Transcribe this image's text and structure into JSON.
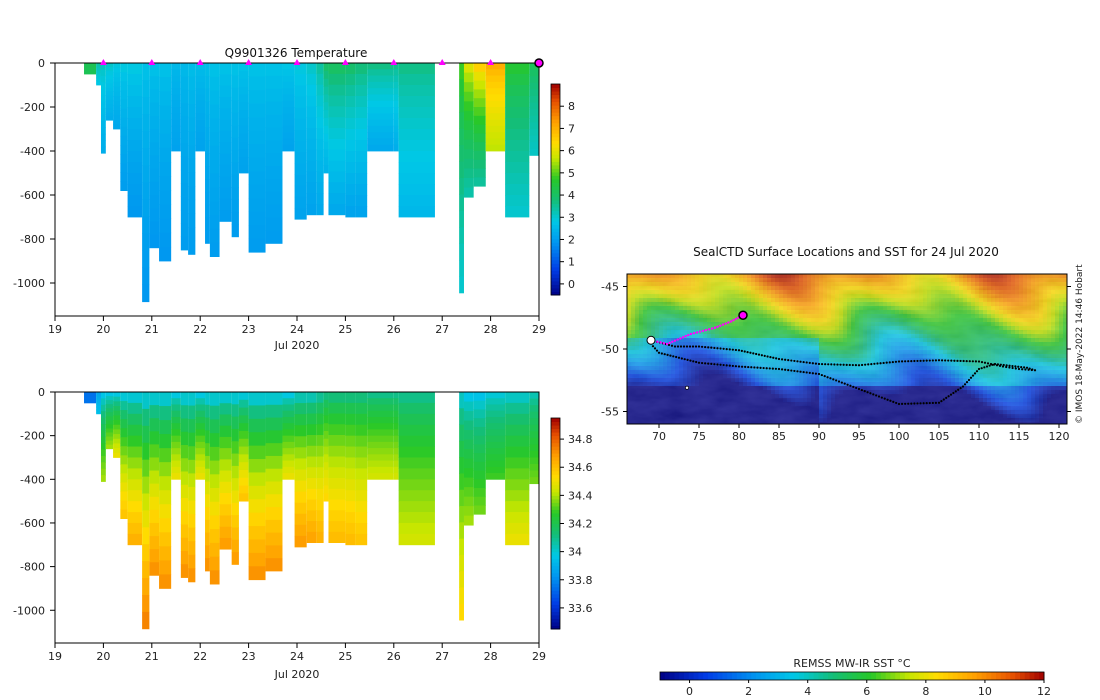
{
  "chart_data": [
    {
      "type": "heatmap",
      "id": "temperature",
      "title": "Q9901326  Temperature",
      "xlabel": "Jul 2020",
      "ylabel": "",
      "xlim": [
        19,
        29
      ],
      "ylim": [
        -1150,
        0
      ],
      "x_ticks": [
        "19",
        "20",
        "21",
        "22",
        "23",
        "24",
        "25",
        "26",
        "27",
        "28",
        "29"
      ],
      "y_ticks": [
        "0",
        "-200",
        "-400",
        "-600",
        "-800",
        "-1000"
      ],
      "colorbar": {
        "min": -0.5,
        "max": 9,
        "ticks": [
          "0",
          "1",
          "2",
          "3",
          "4",
          "5",
          "6",
          "7",
          "8"
        ]
      },
      "surface_markers_day": [
        20,
        21,
        22,
        23,
        24,
        25,
        26,
        27,
        28
      ],
      "last_marker_day": 29,
      "profiles": [
        {
          "x0": 19.6,
          "x1": 19.85,
          "depth": -50,
          "top": 4.2,
          "bottom": 4.2
        },
        {
          "x0": 19.85,
          "x1": 19.95,
          "depth": -100,
          "top": 3.5,
          "bottom": 2.8
        },
        {
          "x0": 19.95,
          "x1": 20.05,
          "depth": -410,
          "top": 3.3,
          "bottom": 2.3
        },
        {
          "x0": 20.05,
          "x1": 20.2,
          "depth": -260,
          "top": 3.2,
          "bottom": 2.3
        },
        {
          "x0": 20.2,
          "x1": 20.35,
          "depth": -300,
          "top": 3.0,
          "bottom": 2.2
        },
        {
          "x0": 20.35,
          "x1": 20.5,
          "depth": -580,
          "top": 3.0,
          "bottom": 2.0
        },
        {
          "x0": 20.5,
          "x1": 20.8,
          "depth": -700,
          "top": 3.0,
          "bottom": 1.9
        },
        {
          "x0": 20.8,
          "x1": 20.95,
          "depth": -1085,
          "top": 2.8,
          "bottom": 1.9
        },
        {
          "x0": 20.95,
          "x1": 21.15,
          "depth": -840,
          "top": 2.8,
          "bottom": 1.9
        },
        {
          "x0": 21.15,
          "x1": 21.4,
          "depth": -900,
          "top": 2.8,
          "bottom": 1.9
        },
        {
          "x0": 21.4,
          "x1": 21.6,
          "depth": -400,
          "top": 2.6,
          "bottom": 2.1
        },
        {
          "x0": 21.6,
          "x1": 21.75,
          "depth": -850,
          "top": 2.6,
          "bottom": 2.0
        },
        {
          "x0": 21.75,
          "x1": 21.9,
          "depth": -870,
          "top": 2.7,
          "bottom": 2.0
        },
        {
          "x0": 21.9,
          "x1": 22.1,
          "depth": -400,
          "top": 2.7,
          "bottom": 2.1
        },
        {
          "x0": 22.1,
          "x1": 22.2,
          "depth": -820,
          "top": 2.7,
          "bottom": 2.0
        },
        {
          "x0": 22.2,
          "x1": 22.4,
          "depth": -880,
          "top": 2.8,
          "bottom": 2.0
        },
        {
          "x0": 22.4,
          "x1": 22.65,
          "depth": -720,
          "top": 2.8,
          "bottom": 2.0
        },
        {
          "x0": 22.65,
          "x1": 22.8,
          "depth": -790,
          "top": 2.8,
          "bottom": 2.0
        },
        {
          "x0": 22.8,
          "x1": 23.0,
          "depth": -500,
          "top": 2.8,
          "bottom": 2.1
        },
        {
          "x0": 23.0,
          "x1": 23.35,
          "depth": -860,
          "top": 2.8,
          "bottom": 2.0
        },
        {
          "x0": 23.35,
          "x1": 23.7,
          "depth": -820,
          "top": 2.8,
          "bottom": 2.0
        },
        {
          "x0": 23.7,
          "x1": 23.95,
          "depth": -400,
          "top": 2.9,
          "bottom": 2.1
        },
        {
          "x0": 23.95,
          "x1": 24.2,
          "depth": -710,
          "top": 3.0,
          "bottom": 2.1
        },
        {
          "x0": 24.2,
          "x1": 24.4,
          "depth": -690,
          "top": 3.2,
          "bottom": 2.1
        },
        {
          "x0": 24.4,
          "x1": 24.55,
          "depth": -690,
          "top": 3.6,
          "bottom": 2.2
        },
        {
          "x0": 24.55,
          "x1": 24.65,
          "depth": -500,
          "top": 4.2,
          "bottom": 2.4
        },
        {
          "x0": 24.65,
          "x1": 25.0,
          "depth": -690,
          "top": 4.3,
          "bottom": 2.2
        },
        {
          "x0": 25.0,
          "x1": 25.2,
          "depth": -700,
          "top": 4.2,
          "bottom": 2.1
        },
        {
          "x0": 25.2,
          "x1": 25.45,
          "depth": -700,
          "top": 4.0,
          "bottom": 2.1
        },
        {
          "x0": 25.45,
          "x1": 26.0,
          "depth": -400,
          "top": 3.9,
          "bottom": 2.2
        },
        {
          "x0": 26.0,
          "x1": 26.1,
          "depth": -400,
          "top": 3.8,
          "bottom": 2.3
        },
        {
          "x0": 26.1,
          "x1": 26.85,
          "depth": -700,
          "top": 3.8,
          "bottom": 2.5
        },
        {
          "x0": 27.35,
          "x1": 27.45,
          "depth": -1045,
          "top": 5.1,
          "bottom": 3.0
        },
        {
          "x0": 27.45,
          "x1": 27.65,
          "depth": -610,
          "top": 6.3,
          "bottom": 3.3
        },
        {
          "x0": 27.65,
          "x1": 27.9,
          "depth": -560,
          "top": 7.0,
          "bottom": 3.4
        },
        {
          "x0": 27.9,
          "x1": 28.3,
          "depth": -400,
          "top": 7.3,
          "bottom": 5.6
        },
        {
          "x0": 28.3,
          "x1": 28.8,
          "depth": -700,
          "top": 4.8,
          "bottom": 3.0
        },
        {
          "x0": 28.8,
          "x1": 29.0,
          "depth": -420,
          "top": 4.3,
          "bottom": 3.1
        }
      ]
    },
    {
      "type": "heatmap",
      "id": "salinity",
      "title": "",
      "xlabel": "Jul 2020",
      "ylabel": "",
      "xlim": [
        19,
        29
      ],
      "ylim": [
        -1150,
        0
      ],
      "x_ticks": [
        "19",
        "20",
        "21",
        "22",
        "23",
        "24",
        "25",
        "26",
        "27",
        "28",
        "29"
      ],
      "y_ticks": [
        "0",
        "-200",
        "-400",
        "-600",
        "-800",
        "-1000"
      ],
      "colorbar": {
        "min": 33.45,
        "max": 34.95,
        "ticks": [
          "33.6",
          "33.8",
          "34",
          "34.2",
          "34.4",
          "34.6",
          "34.8"
        ]
      },
      "profiles": [
        {
          "x0": 19.6,
          "x1": 19.85,
          "depth": -50,
          "top": 33.75,
          "bottom": 33.75
        },
        {
          "x0": 19.85,
          "x1": 19.95,
          "depth": -100,
          "top": 33.85,
          "bottom": 33.95
        },
        {
          "x0": 19.95,
          "x1": 20.05,
          "depth": -410,
          "top": 33.9,
          "bottom": 34.4
        },
        {
          "x0": 20.05,
          "x1": 20.2,
          "depth": -260,
          "top": 33.9,
          "bottom": 34.4
        },
        {
          "x0": 20.2,
          "x1": 20.35,
          "depth": -300,
          "top": 33.9,
          "bottom": 34.5
        },
        {
          "x0": 20.35,
          "x1": 20.5,
          "depth": -580,
          "top": 33.9,
          "bottom": 34.6
        },
        {
          "x0": 20.5,
          "x1": 20.8,
          "depth": -700,
          "top": 33.9,
          "bottom": 34.65
        },
        {
          "x0": 20.8,
          "x1": 20.95,
          "depth": -1085,
          "top": 33.9,
          "bottom": 34.75
        },
        {
          "x0": 20.95,
          "x1": 21.15,
          "depth": -840,
          "top": 33.9,
          "bottom": 34.72
        },
        {
          "x0": 21.15,
          "x1": 21.4,
          "depth": -900,
          "top": 33.9,
          "bottom": 34.72
        },
        {
          "x0": 21.4,
          "x1": 21.6,
          "depth": -400,
          "top": 33.9,
          "bottom": 34.5
        },
        {
          "x0": 21.6,
          "x1": 21.75,
          "depth": -850,
          "top": 33.9,
          "bottom": 34.72
        },
        {
          "x0": 21.75,
          "x1": 21.9,
          "depth": -870,
          "top": 33.9,
          "bottom": 34.72
        },
        {
          "x0": 21.9,
          "x1": 22.1,
          "depth": -400,
          "top": 33.9,
          "bottom": 34.5
        },
        {
          "x0": 22.1,
          "x1": 22.2,
          "depth": -820,
          "top": 33.9,
          "bottom": 34.72
        },
        {
          "x0": 22.2,
          "x1": 22.4,
          "depth": -880,
          "top": 33.9,
          "bottom": 34.72
        },
        {
          "x0": 22.4,
          "x1": 22.65,
          "depth": -720,
          "top": 33.9,
          "bottom": 34.7
        },
        {
          "x0": 22.65,
          "x1": 22.8,
          "depth": -790,
          "top": 33.9,
          "bottom": 34.7
        },
        {
          "x0": 22.8,
          "x1": 23.0,
          "depth": -500,
          "top": 33.9,
          "bottom": 34.6
        },
        {
          "x0": 23.0,
          "x1": 23.35,
          "depth": -860,
          "top": 33.9,
          "bottom": 34.72
        },
        {
          "x0": 23.35,
          "x1": 23.7,
          "depth": -820,
          "top": 33.9,
          "bottom": 34.72
        },
        {
          "x0": 23.7,
          "x1": 23.95,
          "depth": -400,
          "top": 33.9,
          "bottom": 34.5
        },
        {
          "x0": 23.95,
          "x1": 24.2,
          "depth": -710,
          "top": 33.95,
          "bottom": 34.7
        },
        {
          "x0": 24.2,
          "x1": 24.4,
          "depth": -690,
          "top": 33.95,
          "bottom": 34.68
        },
        {
          "x0": 24.4,
          "x1": 24.55,
          "depth": -690,
          "top": 34.0,
          "bottom": 34.65
        },
        {
          "x0": 24.55,
          "x1": 24.65,
          "depth": -500,
          "top": 34.05,
          "bottom": 34.55
        },
        {
          "x0": 24.65,
          "x1": 25.0,
          "depth": -690,
          "top": 34.05,
          "bottom": 34.62
        },
        {
          "x0": 25.0,
          "x1": 25.2,
          "depth": -700,
          "top": 34.05,
          "bottom": 34.62
        },
        {
          "x0": 25.2,
          "x1": 25.45,
          "depth": -700,
          "top": 34.05,
          "bottom": 34.6
        },
        {
          "x0": 25.45,
          "x1": 26.0,
          "depth": -400,
          "top": 34.05,
          "bottom": 34.45
        },
        {
          "x0": 26.0,
          "x1": 26.1,
          "depth": -400,
          "top": 34.05,
          "bottom": 34.45
        },
        {
          "x0": 26.1,
          "x1": 26.85,
          "depth": -700,
          "top": 34.05,
          "bottom": 34.45
        },
        {
          "x0": 27.35,
          "x1": 27.45,
          "depth": -1045,
          "top": 33.95,
          "bottom": 34.55
        },
        {
          "x0": 27.45,
          "x1": 27.65,
          "depth": -610,
          "top": 33.9,
          "bottom": 34.4
        },
        {
          "x0": 27.65,
          "x1": 27.9,
          "depth": -560,
          "top": 33.9,
          "bottom": 34.35
        },
        {
          "x0": 27.9,
          "x1": 28.3,
          "depth": -400,
          "top": 33.95,
          "bottom": 34.3
        },
        {
          "x0": 28.3,
          "x1": 28.8,
          "depth": -700,
          "top": 33.95,
          "bottom": 34.5
        },
        {
          "x0": 28.8,
          "x1": 29.0,
          "depth": -420,
          "top": 34.0,
          "bottom": 34.35
        }
      ]
    },
    {
      "type": "heatmap",
      "id": "map",
      "title": "SealCTD Surface Locations and SST for 24 Jul 2020",
      "xlabel": "",
      "ylabel": "",
      "xlim": [
        66,
        121
      ],
      "ylim": [
        -56,
        -44
      ],
      "x_ticks": [
        "70",
        "75",
        "80",
        "85",
        "90",
        "95",
        "100",
        "105",
        "110",
        "115",
        "120"
      ],
      "y_ticks": [
        "-45",
        "-50",
        "-55"
      ],
      "colorbar": {
        "label": "REMSS MW-IR SST °C",
        "min": -1,
        "max": 12,
        "ticks": [
          "0",
          "2",
          "4",
          "6",
          "8",
          "10",
          "12"
        ]
      },
      "credit": "©  IMOS 18-May-2022 14:46 Hobart",
      "track_black": [
        [
          69,
          -49.3
        ],
        [
          72,
          -49.8
        ],
        [
          75,
          -49.8
        ],
        [
          80,
          -50.1
        ],
        [
          85,
          -50.8
        ],
        [
          90,
          -51.2
        ],
        [
          95,
          -51.3
        ],
        [
          100,
          -51.0
        ],
        [
          105,
          -50.9
        ],
        [
          110,
          -51.0
        ],
        [
          113,
          -51.4
        ],
        [
          115,
          -51.6
        ],
        [
          117,
          -51.7
        ],
        [
          116,
          -51.5
        ],
        [
          112,
          -51.2
        ],
        [
          110,
          -51.6
        ],
        [
          108,
          -53.0
        ],
        [
          105,
          -54.3
        ],
        [
          100,
          -54.4
        ],
        [
          95,
          -53.2
        ],
        [
          90,
          -52.0
        ],
        [
          85,
          -51.6
        ],
        [
          80,
          -51.4
        ],
        [
          75,
          -51.1
        ],
        [
          70,
          -50.3
        ],
        [
          69,
          -49.6
        ]
      ],
      "track_magenta": [
        [
          69,
          -49.3
        ],
        [
          71,
          -49.6
        ],
        [
          74,
          -48.8
        ],
        [
          77,
          -48.3
        ],
        [
          79,
          -47.8
        ],
        [
          80.5,
          -47.3
        ]
      ],
      "current_position": [
        80.5,
        -47.3
      ],
      "other_marker": [
        73.5,
        -53.1
      ]
    }
  ]
}
